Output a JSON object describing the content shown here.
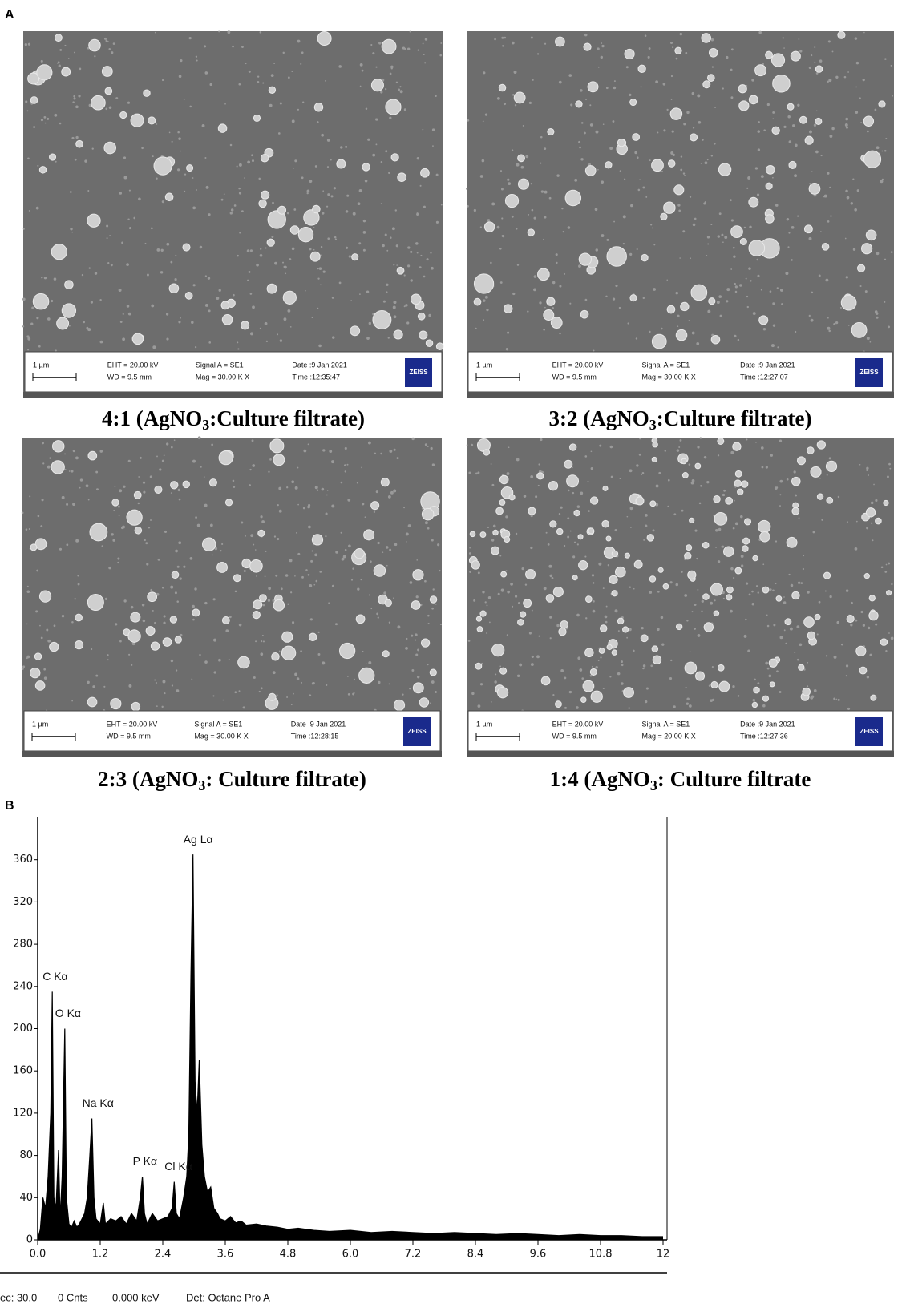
{
  "panel_a_label": "A",
  "panel_b_label": "B",
  "panels": [
    {
      "scale": "1 µm",
      "eht": "EHT = 20.00 kV",
      "wd": "WD = 9.5 mm",
      "signal": "Signal A = SE1",
      "mag": "Mag =  30.00 K X",
      "date": "Date :9 Jan 2021",
      "time": "Time :12:35:47",
      "logo": "ZEISS",
      "caption": {
        "before": "4:1 (AgNO",
        "sub": "3",
        "after": ":Culture filtrate)"
      }
    },
    {
      "scale": "1 µm",
      "eht": "EHT = 20.00 kV",
      "wd": "WD = 9.5 mm",
      "signal": "Signal A = SE1",
      "mag": "Mag =  30.00 K X",
      "date": "Date :9 Jan 2021",
      "time": "Time :12:27:07",
      "logo": "ZEISS",
      "caption": {
        "before": "3:2 (AgNO",
        "sub": "3",
        "after": ":Culture filtrate)"
      }
    },
    {
      "scale": "1 µm",
      "eht": "EHT = 20.00 kV",
      "wd": "WD = 9.5 mm",
      "signal": "Signal A = SE1",
      "mag": "Mag =  30.00 K X",
      "date": "Date :9 Jan 2021",
      "time": "Time :12:28:15",
      "logo": "ZEISS",
      "caption": {
        "before": "2:3 (AgNO",
        "sub": "3",
        "after": ": Culture filtrate)"
      }
    },
    {
      "scale": "1 µm",
      "eht": "EHT = 20.00 kV",
      "wd": "WD = 9.5 mm",
      "signal": "Signal A = SE1",
      "mag": "Mag =  20.00 K X",
      "date": "Date :9 Jan 2021",
      "time": "Time :12:27:36",
      "logo": "ZEISS",
      "caption": {
        "before": "1:4 (AgNO",
        "sub": "3",
        "after": ": Culture filtrate"
      }
    }
  ],
  "chart_data": {
    "type": "area",
    "color": "#000000",
    "x": [
      0,
      0.05,
      0.1,
      0.15,
      0.2,
      0.25,
      0.28,
      0.31,
      0.35,
      0.4,
      0.43,
      0.47,
      0.52,
      0.55,
      0.6,
      0.65,
      0.7,
      0.75,
      0.8,
      0.85,
      0.9,
      0.95,
      1.0,
      1.04,
      1.08,
      1.12,
      1.2,
      1.26,
      1.3,
      1.4,
      1.5,
      1.6,
      1.7,
      1.8,
      1.9,
      1.97,
      2.01,
      2.05,
      2.1,
      2.2,
      2.3,
      2.4,
      2.5,
      2.58,
      2.62,
      2.66,
      2.72,
      2.8,
      2.86,
      2.9,
      2.94,
      2.98,
      3.02,
      3.06,
      3.1,
      3.15,
      3.2,
      3.26,
      3.32,
      3.38,
      3.45,
      3.5,
      3.6,
      3.7,
      3.8,
      3.9,
      4.0,
      4.2,
      4.4,
      4.6,
      4.8,
      5.0,
      5.3,
      5.6,
      6.0,
      6.4,
      6.8,
      7.2,
      7.6,
      8.0,
      8.4,
      8.8,
      9.2,
      9.6,
      10.0,
      10.4,
      10.8,
      11.2,
      11.6,
      12.0
    ],
    "values": [
      0,
      10,
      40,
      30,
      60,
      120,
      235,
      40,
      30,
      85,
      20,
      60,
      200,
      40,
      15,
      12,
      18,
      12,
      15,
      20,
      25,
      40,
      80,
      115,
      40,
      20,
      15,
      35,
      15,
      20,
      18,
      22,
      15,
      25,
      18,
      40,
      60,
      25,
      15,
      25,
      18,
      20,
      22,
      30,
      55,
      25,
      20,
      40,
      60,
      100,
      250,
      365,
      150,
      120,
      170,
      90,
      60,
      45,
      50,
      30,
      25,
      20,
      18,
      22,
      16,
      18,
      14,
      15,
      13,
      12,
      10,
      11,
      9,
      8,
      9,
      7,
      8,
      7,
      6,
      7,
      6,
      5,
      6,
      5,
      4,
      5,
      4,
      4,
      3,
      3
    ],
    "xlim": [
      0,
      12
    ],
    "ylim": [
      0,
      400
    ],
    "xticks": [
      {
        "value": 0,
        "label": "0.0"
      },
      1.2,
      2.4,
      3.6,
      4.8,
      {
        "value": 6,
        "label": "6.0"
      },
      7.2,
      8.4,
      9.6,
      10.8,
      12
    ],
    "yticks": [
      0,
      40,
      80,
      120,
      160,
      200,
      240,
      280,
      320,
      360
    ],
    "annotations": [
      {
        "text": "C  Kα",
        "x": 0.28
      },
      {
        "text": "O  Kα",
        "x": 0.52
      },
      {
        "text": "Na Kα",
        "x": 1.04
      },
      {
        "text": "P  Kα",
        "x": 2.01
      },
      {
        "text": "Cl Kα",
        "x": 2.62
      },
      {
        "text": "Ag Lα",
        "x": 2.98
      }
    ],
    "footer": [
      "ec: 30.0",
      "0 Cnts",
      "0.000 keV",
      "Det: Octane Pro A"
    ]
  }
}
